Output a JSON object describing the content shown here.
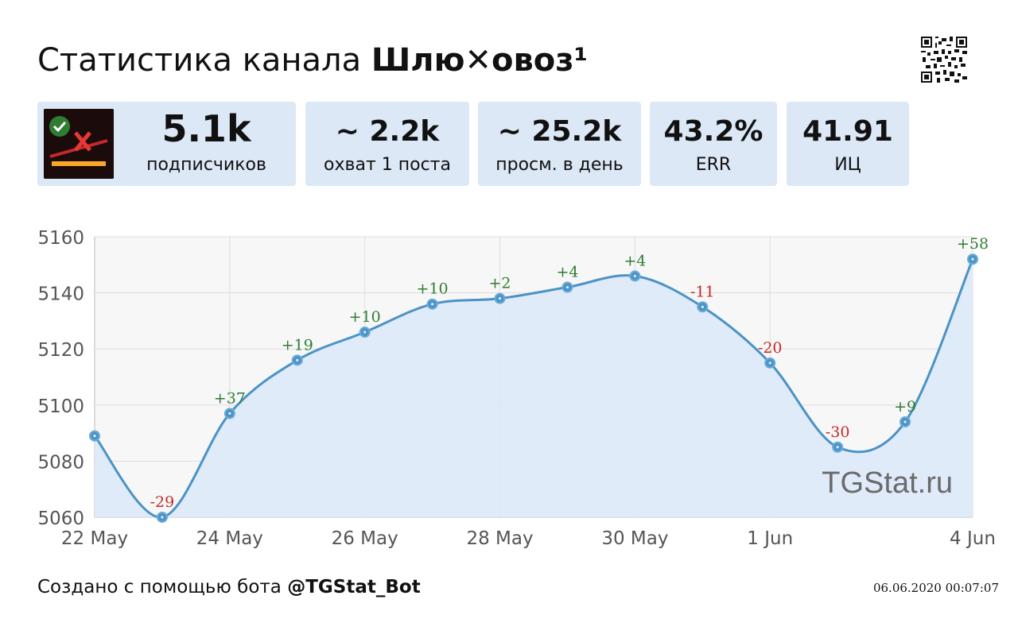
{
  "header": {
    "title_prefix": "Статистика канала",
    "channel_name_part1": "Шлю",
    "channel_name_mark": "✕",
    "channel_name_part2": "овоз¹"
  },
  "cards": [
    {
      "value": "5.1k",
      "label": "подписчиков"
    },
    {
      "value": "~ 2.2k",
      "label": "охват 1 поста"
    },
    {
      "value": "~ 25.2k",
      "label": "просм. в день"
    },
    {
      "value": "43.2%",
      "label": "ERR"
    },
    {
      "value": "41.91",
      "label": "ИЦ"
    }
  ],
  "colors": {
    "card_bg": "#dce8f6",
    "line": "#4b93c6",
    "area": "#dde9f8",
    "positive": "#2e7d32",
    "negative": "#c62828",
    "grid": "#dddddd",
    "plot_bg": "#f7f7f7"
  },
  "chart_data": {
    "type": "line",
    "x": [
      "22 May",
      "23 May",
      "24 May",
      "25 May",
      "26 May",
      "27 May",
      "28 May",
      "29 May",
      "30 May",
      "31 May",
      "1 Jun",
      "2 Jun",
      "3 Jun",
      "4 Jun"
    ],
    "values": [
      5089,
      5060,
      5097,
      5116,
      5126,
      5136,
      5138,
      5142,
      5146,
      5135,
      5115,
      5085,
      5094,
      5152
    ],
    "labels": [
      "",
      "-29",
      "+37",
      "+19",
      "+10",
      "+10",
      "+2",
      "+4",
      "+4",
      "-11",
      "-20",
      "-30",
      "+9",
      "+58"
    ],
    "x_tick_labels": [
      "22 May",
      "24 May",
      "26 May",
      "28 May",
      "30 May",
      "1 Jun",
      "4 Jun"
    ],
    "x_tick_indices": [
      0,
      2,
      4,
      6,
      8,
      10,
      13
    ],
    "y_ticks": [
      5060,
      5080,
      5100,
      5120,
      5140,
      5160
    ],
    "ylim": [
      5060,
      5160
    ],
    "grid": true,
    "area_fill": true,
    "watermark": "TGStat.ru",
    "title": "",
    "xlabel": "",
    "ylabel": ""
  },
  "footer": {
    "text": "Создано с помощью бота",
    "bot": "@TGStat_Bot",
    "timestamp": "06.06.2020 00:07:07"
  }
}
